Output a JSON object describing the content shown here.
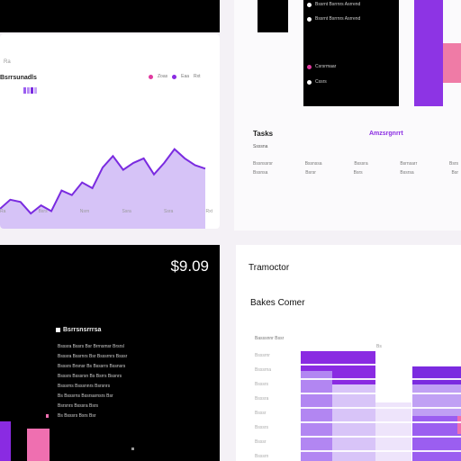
{
  "chart_card": {
    "title": "Bsrrsunadls",
    "small_label": "Ra",
    "legend": [
      "Zoas",
      "Eaa",
      "Rxt"
    ],
    "x_ticks": [
      "Ra",
      "Bsrs",
      "Nsrn",
      "Ssra",
      "Ssra",
      "Rxt"
    ]
  },
  "top_list": {
    "items": [
      "Bssrnt Bsrrnrs Asrrend",
      "Csrsrmaar",
      "Cssrs"
    ],
    "colors": [
      "#ffffff",
      "#e03aa0",
      "#ffffff"
    ]
  },
  "tasks": {
    "title": "Tasks",
    "subtitle": "Ssssna",
    "link": "Amzsrgnrrt",
    "rows": [
      [
        "Bssnssrsr",
        "Bssnssa",
        "Bsssra",
        "Bsrnsarr",
        "Bsrs"
      ],
      [
        "Bssnsa",
        "Bsrsr",
        "Bsrs",
        "Bssrsa",
        "Bsr"
      ]
    ]
  },
  "price": "$9.09",
  "dark_list": {
    "heading": "Bsrrsnsrrrsa",
    "lines": [
      "Bsssra Bssrs Bsr Brrnsmsr Brsrsl",
      "Bsssra Bssrnrs Bsr Bsssrnrs Bsssr",
      "Bsssrs Brsnsr Bs Bsssrrs Bssnsrs",
      "Bsssrs Bsssrsn Bs Bsrrs Bssnrs",
      "Bsssrns Bsssnnrs Bsrsnrs",
      "Bs Bsssrns Bssrsarnsrs Bsr",
      "Bsrsnrs Bsssra Bsrs",
      "Bs Bsssrs Bsrs Bsr"
    ]
  },
  "transactor": {
    "title": "Tramoctor",
    "subtitle": "Bakes Comer",
    "series_label": "Basssnnr Bssr",
    "axis_tick": "Bs",
    "rows": [
      "Bsssrnr",
      "Bsssrna",
      "Bsssrs",
      "Bsssra",
      "Bsssr",
      "Bsssrs",
      "Bsssr",
      "Bsssrn"
    ]
  },
  "chart_data": {
    "type": "area",
    "x": [
      0,
      1,
      2,
      3,
      4,
      5,
      6,
      7,
      8,
      9,
      10,
      11,
      12,
      13,
      14,
      15,
      16,
      17,
      18,
      19,
      20
    ],
    "values": [
      22,
      30,
      28,
      18,
      25,
      20,
      38,
      34,
      45,
      40,
      58,
      68,
      56,
      62,
      66,
      52,
      62,
      74,
      66,
      60,
      57
    ],
    "color": "#7a2be0",
    "fill": "#d6c3f7"
  },
  "colors": {
    "accent": "#8a2be2",
    "pink": "#ef7ba6"
  }
}
